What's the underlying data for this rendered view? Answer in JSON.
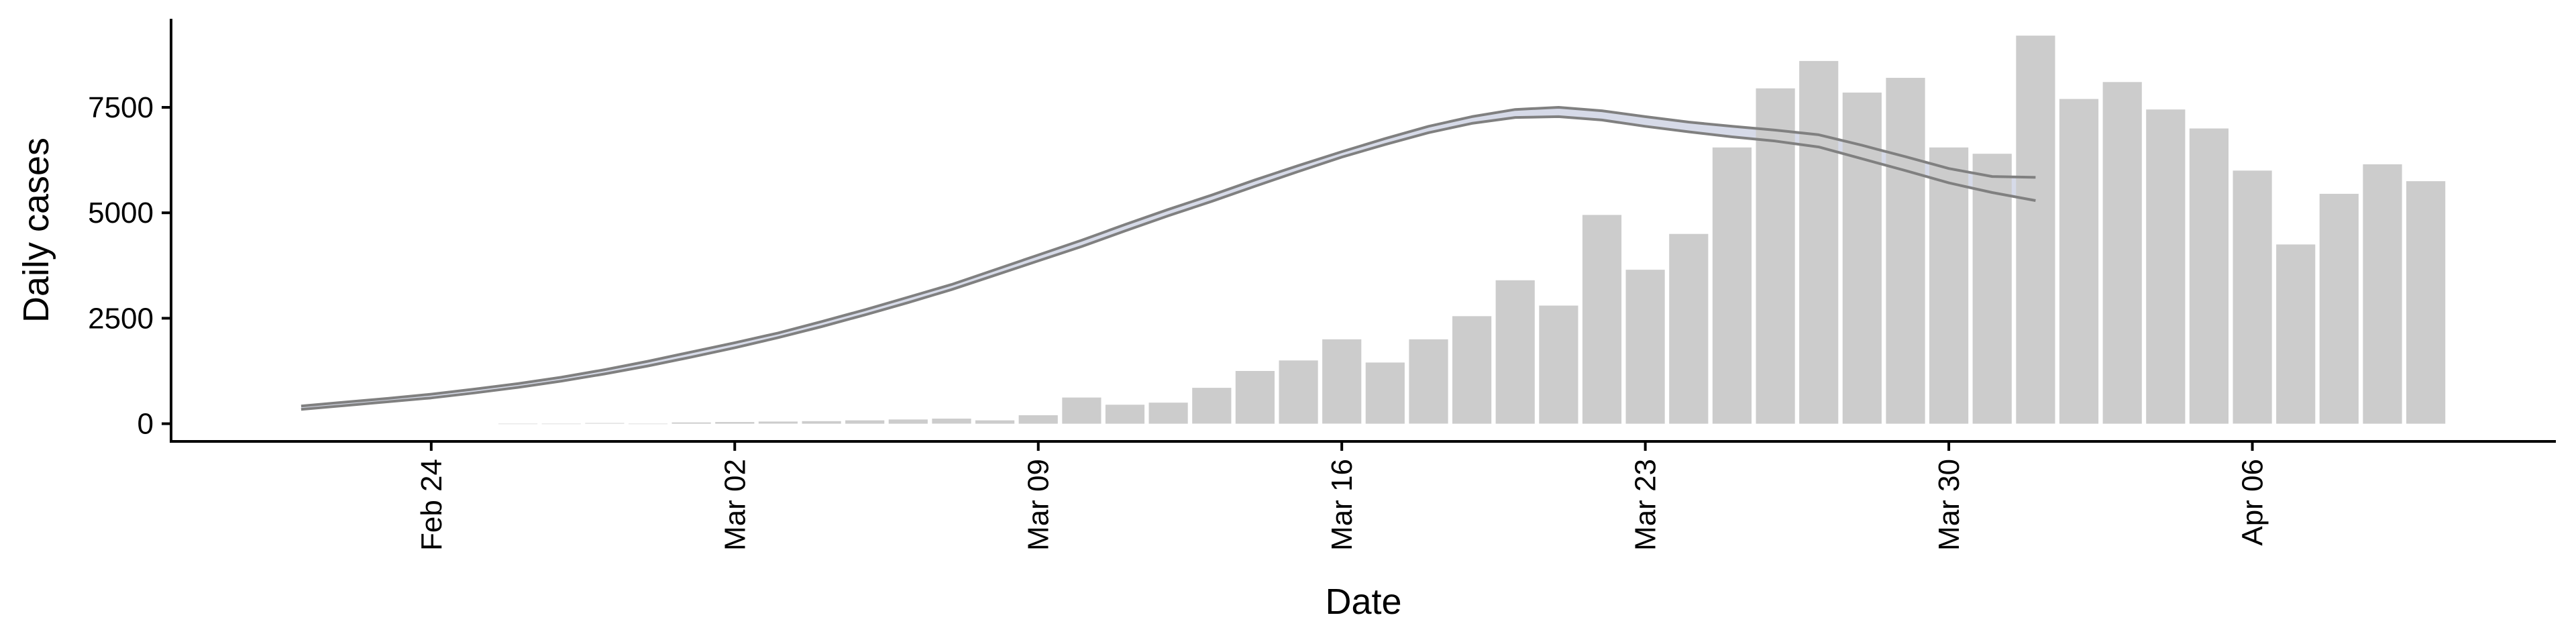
{
  "chart_data": {
    "type": "bar",
    "title": "",
    "xlabel": "Date",
    "ylabel": "Daily cases",
    "xlim": [
      "2020-02-18",
      "2020-04-13"
    ],
    "ylim": [
      -420,
      9600
    ],
    "x_ticks": [
      {
        "date": "2020-02-24",
        "label": "Feb 24"
      },
      {
        "date": "2020-03-02",
        "label": "Mar 02"
      },
      {
        "date": "2020-03-09",
        "label": "Mar 09"
      },
      {
        "date": "2020-03-16",
        "label": "Mar 16"
      },
      {
        "date": "2020-03-23",
        "label": "Mar 23"
      },
      {
        "date": "2020-03-30",
        "label": "Mar 30"
      },
      {
        "date": "2020-04-06",
        "label": "Apr 06"
      }
    ],
    "y_ticks": [
      0,
      2500,
      5000,
      7500
    ],
    "grid": false,
    "legend": "none",
    "colors": {
      "bars": "#cccccc",
      "line": "#808080",
      "band": "#c8cde0"
    },
    "bars": {
      "dates": [
        "2020-02-26",
        "2020-02-27",
        "2020-02-28",
        "2020-02-29",
        "2020-03-01",
        "2020-03-02",
        "2020-03-03",
        "2020-03-04",
        "2020-03-05",
        "2020-03-06",
        "2020-03-07",
        "2020-03-08",
        "2020-03-09",
        "2020-03-10",
        "2020-03-11",
        "2020-03-12",
        "2020-03-13",
        "2020-03-14",
        "2020-03-15",
        "2020-03-16",
        "2020-03-17",
        "2020-03-18",
        "2020-03-19",
        "2020-03-20",
        "2020-03-21",
        "2020-03-22",
        "2020-03-23",
        "2020-03-24",
        "2020-03-25",
        "2020-03-26",
        "2020-03-27",
        "2020-03-28",
        "2020-03-29",
        "2020-03-30",
        "2020-03-31",
        "2020-04-01",
        "2020-04-02",
        "2020-04-03",
        "2020-04-04",
        "2020-04-05",
        "2020-04-06",
        "2020-04-07",
        "2020-04-08",
        "2020-04-09",
        "2020-04-10"
      ],
      "values": [
        0,
        0,
        15,
        0,
        30,
        40,
        50,
        60,
        80,
        100,
        120,
        80,
        200,
        620,
        450,
        500,
        850,
        1250,
        1500,
        2000,
        1450,
        2000,
        2550,
        3400,
        2800,
        4950,
        3650,
        4500,
        6550,
        7950,
        8600,
        7850,
        8200,
        6550,
        6400,
        9200,
        7700,
        8100,
        7450,
        7000,
        6000,
        4250,
        5450,
        6150,
        5750
      ]
    },
    "curves": {
      "dates": [
        "2020-02-21",
        "2020-02-22",
        "2020-02-23",
        "2020-02-24",
        "2020-02-25",
        "2020-02-26",
        "2020-02-27",
        "2020-02-28",
        "2020-02-29",
        "2020-03-01",
        "2020-03-02",
        "2020-03-03",
        "2020-03-04",
        "2020-03-05",
        "2020-03-06",
        "2020-03-07",
        "2020-03-08",
        "2020-03-09",
        "2020-03-10",
        "2020-03-11",
        "2020-03-12",
        "2020-03-13",
        "2020-03-14",
        "2020-03-15",
        "2020-03-16",
        "2020-03-17",
        "2020-03-18",
        "2020-03-19",
        "2020-03-20",
        "2020-03-21",
        "2020-03-22",
        "2020-03-23",
        "2020-03-24",
        "2020-03-25",
        "2020-03-26",
        "2020-03-27",
        "2020-03-28",
        "2020-03-29",
        "2020-03-30",
        "2020-03-31",
        "2020-04-01"
      ],
      "upper": [
        420,
        510,
        600,
        700,
        820,
        950,
        1100,
        1280,
        1480,
        1700,
        1920,
        2150,
        2420,
        2700,
        3000,
        3300,
        3650,
        4000,
        4350,
        4720,
        5080,
        5420,
        5780,
        6120,
        6450,
        6760,
        7050,
        7280,
        7450,
        7500,
        7420,
        7280,
        7150,
        7050,
        6960,
        6850,
        6600,
        6330,
        6050,
        5860,
        5840
      ],
      "lower": [
        340,
        430,
        520,
        610,
        730,
        860,
        1010,
        1180,
        1370,
        1580,
        1800,
        2040,
        2300,
        2580,
        2870,
        3180,
        3520,
        3860,
        4200,
        4570,
        4930,
        5270,
        5630,
        5980,
        6320,
        6620,
        6900,
        7120,
        7260,
        7280,
        7200,
        7050,
        6920,
        6800,
        6700,
        6560,
        6280,
        6000,
        5710,
        5480,
        5290
      ]
    }
  }
}
